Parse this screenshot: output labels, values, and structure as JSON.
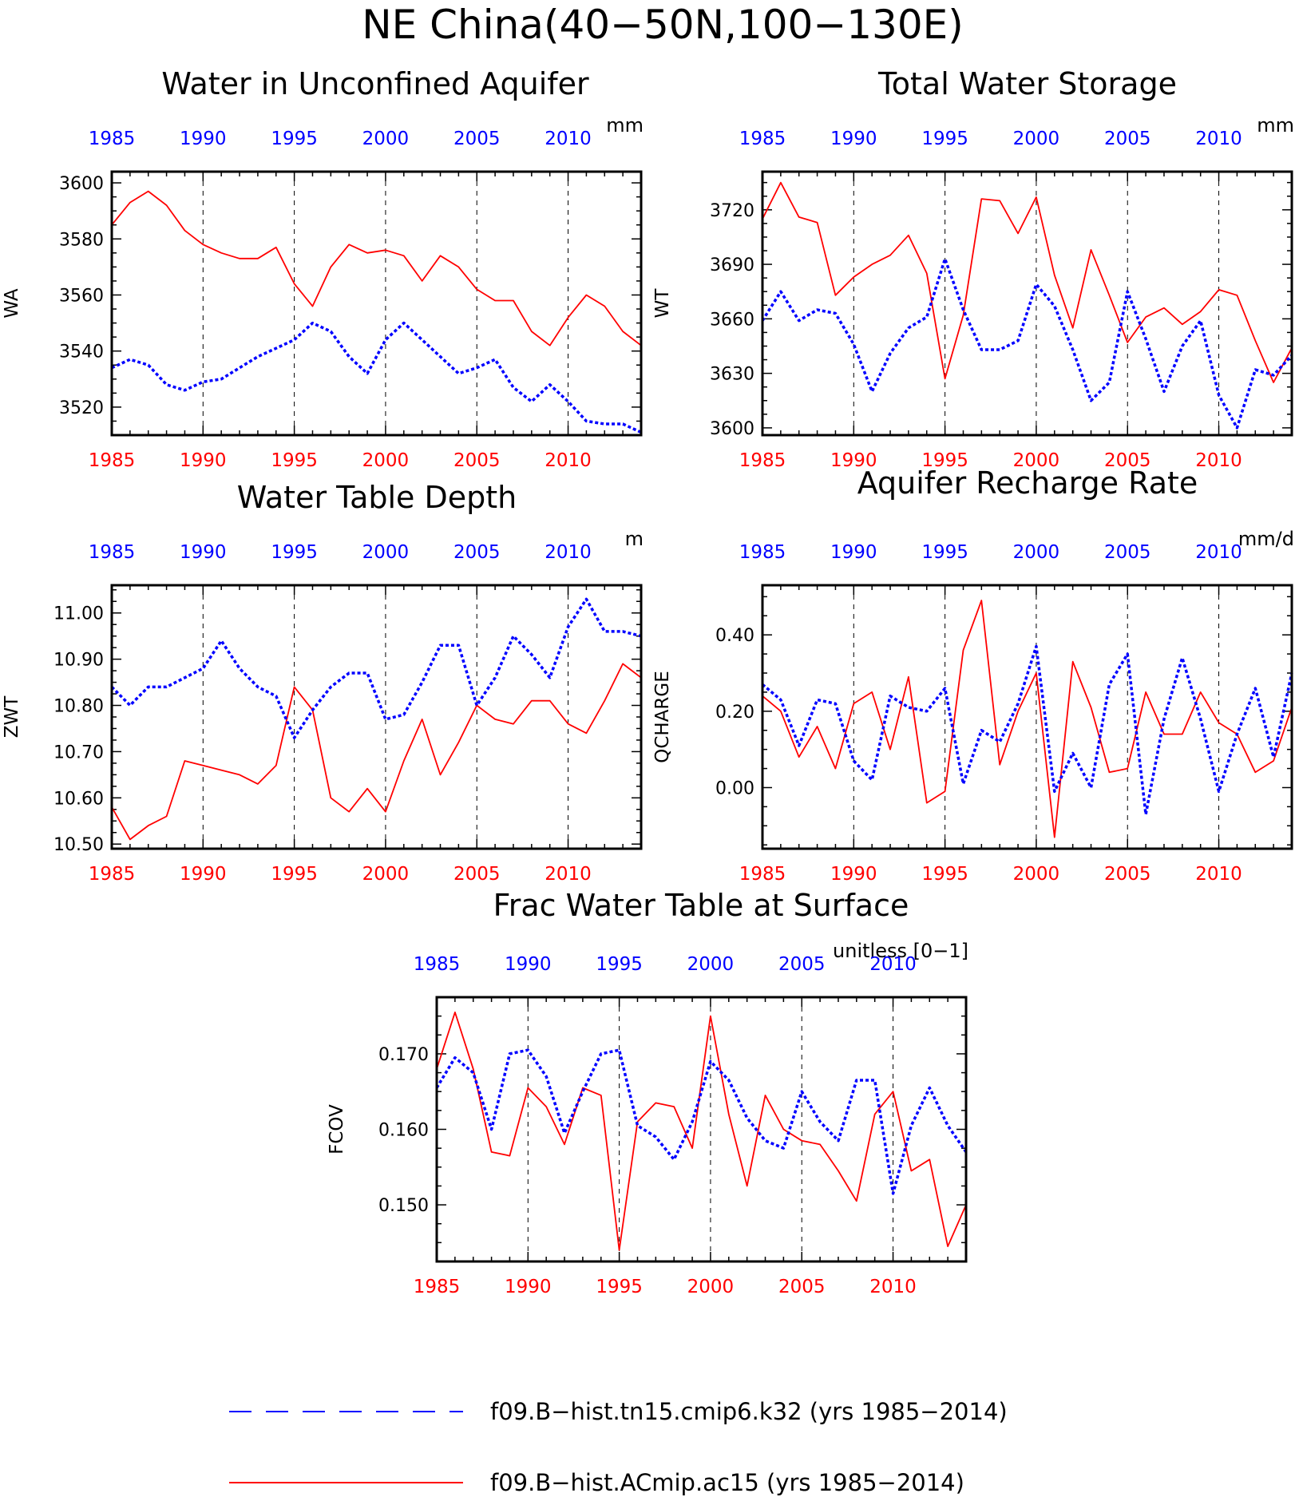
{
  "page_title": "NE China(40−50N,100−130E)",
  "colors": {
    "series_a": "#0000ff",
    "series_b": "#ff0000",
    "axis": "#000000"
  },
  "legend": [
    {
      "label": "f09.B−hist.tn15.cmip6.k32 (yrs 1985−2014)",
      "color": "#0000ff",
      "style": "dashed"
    },
    {
      "label": "f09.B−hist.ACmip.ac15 (yrs 1985−2014)",
      "color": "#ff0000",
      "style": "solid"
    }
  ],
  "chart_data": [
    {
      "type": "line",
      "title": "Water in Unconfined Aquifer",
      "ylabel": "WA",
      "units": "mm",
      "xlim": [
        1985,
        2014
      ],
      "ylim": [
        3510,
        3604
      ],
      "yticks": [
        3520,
        3540,
        3560,
        3580,
        3600
      ],
      "ytick_labels": [
        "3520",
        "3540",
        "3560",
        "3580",
        "3600"
      ],
      "xticks": [
        1985,
        1990,
        1995,
        2000,
        2005,
        2010
      ],
      "x": [
        1985,
        1986,
        1987,
        1988,
        1989,
        1990,
        1991,
        1992,
        1993,
        1994,
        1995,
        1996,
        1997,
        1998,
        1999,
        2000,
        2001,
        2002,
        2003,
        2004,
        2005,
        2006,
        2007,
        2008,
        2009,
        2010,
        2011,
        2012,
        2013,
        2014
      ],
      "series": [
        {
          "color": "#ff0000",
          "style": "solid",
          "values": [
            3585,
            3593,
            3597,
            3592,
            3583,
            3578,
            3575,
            3573,
            3573,
            3577,
            3564,
            3556,
            3570,
            3578,
            3575,
            3576,
            3574,
            3565,
            3574,
            3570,
            3562,
            3558,
            3558,
            3547,
            3542,
            3552,
            3560,
            3556,
            3547,
            3542
          ]
        },
        {
          "color": "#0000ff",
          "style": "dotted",
          "values": [
            3534,
            3537,
            3535,
            3528,
            3526,
            3529,
            3530,
            3534,
            3538,
            3541,
            3544,
            3550,
            3547,
            3538,
            3532,
            3544,
            3550,
            3544,
            3538,
            3532,
            3534,
            3537,
            3527,
            3522,
            3528,
            3522,
            3515,
            3514,
            3514,
            3511
          ]
        }
      ]
    },
    {
      "type": "line",
      "title": "Total Water Storage",
      "ylabel": "WT",
      "units": "mm",
      "xlim": [
        1985,
        2014
      ],
      "ylim": [
        3596,
        3741
      ],
      "yticks": [
        3600,
        3630,
        3660,
        3690,
        3720
      ],
      "ytick_labels": [
        "3600",
        "3630",
        "3660",
        "3690",
        "3720"
      ],
      "xticks": [
        1985,
        1990,
        1995,
        2000,
        2005,
        2010
      ],
      "x": [
        1985,
        1986,
        1987,
        1988,
        1989,
        1990,
        1991,
        1992,
        1993,
        1994,
        1995,
        1996,
        1997,
        1998,
        1999,
        2000,
        2001,
        2002,
        2003,
        2004,
        2005,
        2006,
        2007,
        2008,
        2009,
        2010,
        2011,
        2012,
        2013,
        2014
      ],
      "series": [
        {
          "color": "#ff0000",
          "style": "solid",
          "values": [
            3715,
            3735,
            3716,
            3713,
            3673,
            3683,
            3690,
            3695,
            3706,
            3685,
            3627,
            3662,
            3726,
            3725,
            3707,
            3727,
            3684,
            3655,
            3698,
            3673,
            3647,
            3661,
            3666,
            3657,
            3664,
            3676,
            3673,
            3648,
            3625,
            3644
          ]
        },
        {
          "color": "#0000ff",
          "style": "dotted",
          "values": [
            3659,
            3675,
            3659,
            3665,
            3663,
            3646,
            3620,
            3641,
            3655,
            3661,
            3693,
            3665,
            3643,
            3643,
            3648,
            3679,
            3667,
            3643,
            3615,
            3625,
            3675,
            3649,
            3620,
            3645,
            3659,
            3618,
            3600,
            3632,
            3629,
            3640
          ]
        }
      ]
    },
    {
      "type": "line",
      "title": "Water Table Depth",
      "ylabel": "ZWT",
      "units": "m",
      "xlim": [
        1985,
        2014
      ],
      "ylim": [
        10.49,
        11.06
      ],
      "yticks": [
        10.5,
        10.6,
        10.7,
        10.8,
        10.9,
        11.0
      ],
      "ytick_labels": [
        "10.50",
        "10.60",
        "10.70",
        "10.80",
        "10.90",
        "11.00"
      ],
      "xticks": [
        1985,
        1990,
        1995,
        2000,
        2005,
        2010
      ],
      "x": [
        1985,
        1986,
        1987,
        1988,
        1989,
        1990,
        1991,
        1992,
        1993,
        1994,
        1995,
        1996,
        1997,
        1998,
        1999,
        2000,
        2001,
        2002,
        2003,
        2004,
        2005,
        2006,
        2007,
        2008,
        2009,
        2010,
        2011,
        2012,
        2013,
        2014
      ],
      "series": [
        {
          "color": "#ff0000",
          "style": "solid",
          "values": [
            10.58,
            10.51,
            10.54,
            10.56,
            10.68,
            10.67,
            10.66,
            10.65,
            10.63,
            10.67,
            10.84,
            10.79,
            10.6,
            10.57,
            10.62,
            10.57,
            10.68,
            10.77,
            10.65,
            10.72,
            10.8,
            10.77,
            10.76,
            10.81,
            10.81,
            10.76,
            10.74,
            10.81,
            10.89,
            10.86
          ]
        },
        {
          "color": "#0000ff",
          "style": "dotted",
          "values": [
            10.84,
            10.8,
            10.84,
            10.84,
            10.86,
            10.88,
            10.94,
            10.88,
            10.84,
            10.82,
            10.73,
            10.79,
            10.84,
            10.87,
            10.87,
            10.77,
            10.78,
            10.85,
            10.93,
            10.93,
            10.8,
            10.86,
            10.95,
            10.91,
            10.86,
            10.97,
            11.03,
            10.96,
            10.96,
            10.95
          ]
        }
      ]
    },
    {
      "type": "line",
      "title": "Aquifer Recharge Rate",
      "ylabel": "QCHARGE",
      "units": "mm/d",
      "xlim": [
        1985,
        2014
      ],
      "ylim": [
        -0.16,
        0.53
      ],
      "yticks": [
        0.0,
        0.2,
        0.4
      ],
      "ytick_labels": [
        "0.00",
        "0.20",
        "0.40"
      ],
      "xticks": [
        1985,
        1990,
        1995,
        2000,
        2005,
        2010
      ],
      "x": [
        1985,
        1986,
        1987,
        1988,
        1989,
        1990,
        1991,
        1992,
        1993,
        1994,
        1995,
        1996,
        1997,
        1998,
        1999,
        2000,
        2001,
        2002,
        2003,
        2004,
        2005,
        2006,
        2007,
        2008,
        2009,
        2010,
        2011,
        2012,
        2013,
        2014
      ],
      "series": [
        {
          "color": "#ff0000",
          "style": "solid",
          "values": [
            0.24,
            0.2,
            0.08,
            0.16,
            0.05,
            0.22,
            0.25,
            0.1,
            0.29,
            -0.04,
            -0.01,
            0.36,
            0.49,
            0.06,
            0.2,
            0.3,
            -0.13,
            0.33,
            0.21,
            0.04,
            0.05,
            0.25,
            0.14,
            0.14,
            0.25,
            0.17,
            0.14,
            0.04,
            0.07,
            0.21
          ]
        },
        {
          "color": "#0000ff",
          "style": "dotted",
          "values": [
            0.27,
            0.23,
            0.11,
            0.23,
            0.22,
            0.07,
            0.02,
            0.24,
            0.21,
            0.2,
            0.26,
            0.01,
            0.15,
            0.12,
            0.22,
            0.37,
            -0.01,
            0.09,
            0.0,
            0.27,
            0.35,
            -0.07,
            0.18,
            0.34,
            0.18,
            -0.01,
            0.14,
            0.26,
            0.08,
            0.3
          ]
        }
      ]
    },
    {
      "type": "line",
      "title": "Frac Water Table at Surface",
      "ylabel": "FCOV",
      "units": "unitless [0−1]",
      "xlim": [
        1985,
        2014
      ],
      "ylim": [
        0.1425,
        0.1775
      ],
      "yticks": [
        0.15,
        0.16,
        0.17
      ],
      "ytick_labels": [
        "0.150",
        "0.160",
        "0.170"
      ],
      "xticks": [
        1985,
        1990,
        1995,
        2000,
        2005,
        2010
      ],
      "x": [
        1985,
        1986,
        1987,
        1988,
        1989,
        1990,
        1991,
        1992,
        1993,
        1994,
        1995,
        1996,
        1997,
        1998,
        1999,
        2000,
        2001,
        2002,
        2003,
        2004,
        2005,
        2006,
        2007,
        2008,
        2009,
        2010,
        2011,
        2012,
        2013,
        2014
      ],
      "series": [
        {
          "color": "#ff0000",
          "style": "solid",
          "values": [
            0.168,
            0.1755,
            0.168,
            0.157,
            0.1565,
            0.1655,
            0.163,
            0.158,
            0.1655,
            0.1645,
            0.144,
            0.161,
            0.1635,
            0.163,
            0.1575,
            0.175,
            0.162,
            0.1525,
            0.1645,
            0.16,
            0.1585,
            0.158,
            0.1545,
            0.1505,
            0.162,
            0.165,
            0.1545,
            0.156,
            0.1445,
            0.15
          ]
        },
        {
          "color": "#0000ff",
          "style": "dotted",
          "values": [
            0.1655,
            0.1695,
            0.1675,
            0.16,
            0.17,
            0.1705,
            0.167,
            0.1595,
            0.165,
            0.17,
            0.1705,
            0.1605,
            0.159,
            0.156,
            0.161,
            0.169,
            0.1665,
            0.1615,
            0.1585,
            0.1575,
            0.165,
            0.161,
            0.1585,
            0.1665,
            0.1665,
            0.1515,
            0.1605,
            0.1655,
            0.1605,
            0.157
          ]
        }
      ]
    }
  ]
}
